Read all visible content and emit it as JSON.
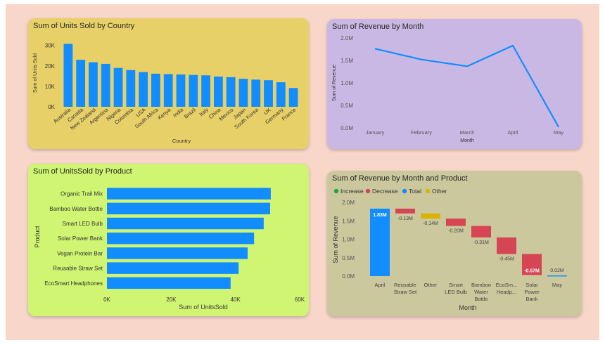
{
  "chart_data": [
    {
      "id": "units-by-country",
      "type": "bar",
      "title": "Sum of Units Sold by Country",
      "xlabel": "Country",
      "ylabel": "Sum of Units Sold",
      "ylim": [
        0,
        33000
      ],
      "yticks": [
        {
          "v": 0,
          "l": "0K"
        },
        {
          "v": 10000,
          "l": "10K"
        },
        {
          "v": 20000,
          "l": "20K"
        },
        {
          "v": 30000,
          "l": "30K"
        }
      ],
      "categories": [
        "Australia",
        "Canada",
        "New Zealand",
        "Argentina",
        "Nigeria",
        "Colombia",
        "USA",
        "South Africa",
        "Kenya",
        "India",
        "Brazil",
        "Italy",
        "China",
        "Mexico",
        "Japan",
        "South Korea",
        "UK",
        "Germany",
        "France"
      ],
      "values": [
        30800,
        23000,
        21800,
        21000,
        19000,
        18000,
        17000,
        16200,
        16000,
        15800,
        15600,
        15400,
        14800,
        14500,
        13700,
        13300,
        13000,
        12000,
        9200
      ],
      "color": "#118dff"
    },
    {
      "id": "revenue-by-month",
      "type": "line",
      "title": "Sum of Revenue by Month",
      "xlabel": "Month",
      "ylabel": "Sum of Revenue",
      "ylim": [
        0,
        2000000
      ],
      "yticks": [
        {
          "v": 0,
          "l": "0.0M"
        },
        {
          "v": 500000,
          "l": "0.5M"
        },
        {
          "v": 1000000,
          "l": "1.0M"
        },
        {
          "v": 1500000,
          "l": "1.5M"
        },
        {
          "v": 2000000,
          "l": "2.0M"
        }
      ],
      "x": [
        "January",
        "February",
        "March",
        "April",
        "May"
      ],
      "values": [
        1760000,
        1520000,
        1370000,
        1830000,
        20000
      ],
      "color": "#118dff"
    },
    {
      "id": "units-by-product",
      "type": "bar",
      "orientation": "horizontal",
      "title": "Sum of UnitsSold by Product",
      "xlabel": "Sum of UnitsSold",
      "ylabel": "Product",
      "xlim": [
        0,
        60000
      ],
      "xticks": [
        {
          "v": 0,
          "l": "0K"
        },
        {
          "v": 20000,
          "l": "20K"
        },
        {
          "v": 40000,
          "l": "40K"
        },
        {
          "v": 60000,
          "l": "60K"
        }
      ],
      "categories": [
        "Organic Trail Mix",
        "Bamboo Water Bottle",
        "Smart LED Bulb",
        "Solar Power Bank",
        "Vegan Protein Bar",
        "Reusable Straw Set",
        "EcoSmart Headphones"
      ],
      "values": [
        51000,
        50800,
        48800,
        45800,
        43800,
        41000,
        38500
      ],
      "color": "#118dff"
    },
    {
      "id": "revenue-waterfall",
      "type": "bar",
      "subtype": "waterfall",
      "title": "Sum of Revenue by Month and Product",
      "xlabel": "Month",
      "ylabel": "Sum of Revenue",
      "ylim": [
        0,
        2000000
      ],
      "yticks": [
        {
          "v": 0,
          "l": "0.0M"
        },
        {
          "v": 500000,
          "l": "0.5M"
        },
        {
          "v": 1000000,
          "l": "1.0M"
        },
        {
          "v": 1500000,
          "l": "1.5M"
        },
        {
          "v": 2000000,
          "l": "2.0M"
        }
      ],
      "legend": [
        {
          "name": "Increase",
          "color": "#1aab40"
        },
        {
          "name": "Decrease",
          "color": "#d64554"
        },
        {
          "name": "Total",
          "color": "#118dff"
        },
        {
          "name": "Other",
          "color": "#d9b300"
        }
      ],
      "legend_placement": "top-left",
      "steps": [
        {
          "label": [
            "April"
          ],
          "start": 0,
          "end": 1830000,
          "kind": "Total",
          "value_label": "1.83M"
        },
        {
          "label": [
            "Reusable",
            "Straw Set"
          ],
          "start": 1830000,
          "end": 1700000,
          "kind": "Decrease",
          "value_label": "-0.13M"
        },
        {
          "label": [
            "Other"
          ],
          "start": 1700000,
          "end": 1560000,
          "kind": "Other",
          "value_label": "-0.14M"
        },
        {
          "label": [
            "Smart",
            "LED Bulb"
          ],
          "start": 1560000,
          "end": 1360000,
          "kind": "Decrease",
          "value_label": "-0.20M"
        },
        {
          "label": [
            "Bamboo",
            "Water",
            "Bottle"
          ],
          "start": 1360000,
          "end": 1050000,
          "kind": "Decrease",
          "value_label": "-0.31M"
        },
        {
          "label": [
            "EcoSm...",
            "Headp..."
          ],
          "start": 1050000,
          "end": 600000,
          "kind": "Decrease",
          "value_label": "-0.45M"
        },
        {
          "label": [
            "Solar",
            "Power",
            "Bank"
          ],
          "start": 600000,
          "end": 30000,
          "kind": "Decrease",
          "value_label": "-0.57M"
        },
        {
          "label": [
            "May"
          ],
          "start": 0,
          "end": 20000,
          "kind": "Total",
          "value_label": "0.02M"
        }
      ]
    }
  ]
}
